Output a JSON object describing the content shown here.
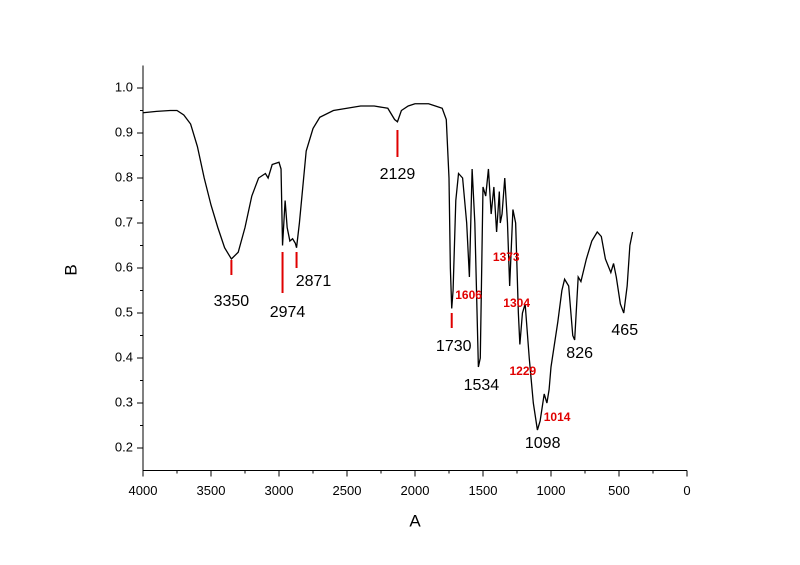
{
  "chart_data": {
    "type": "line",
    "x_label": "A",
    "y_label": "B",
    "xlim": [
      4000,
      0
    ],
    "ylim": [
      0.15,
      1.05
    ],
    "xticks": [
      4000,
      3500,
      3000,
      2500,
      2000,
      1500,
      1000,
      500,
      0
    ],
    "yticks": [
      0.2,
      0.3,
      0.4,
      0.5,
      0.6,
      0.7,
      0.8,
      0.9,
      {
        "value": 1,
        "label": "1.0"
      }
    ],
    "color": "#000000",
    "x": [
      4000,
      3900,
      3800,
      3750,
      3700,
      3650,
      3600,
      3550,
      3500,
      3450,
      3400,
      3350,
      3300,
      3250,
      3200,
      3150,
      3100,
      3080,
      3050,
      3000,
      2985,
      2974,
      2955,
      2940,
      2920,
      2900,
      2880,
      2871,
      2850,
      2800,
      2750,
      2700,
      2600,
      2500,
      2400,
      2300,
      2200,
      2150,
      2129,
      2100,
      2050,
      2000,
      1900,
      1850,
      1800,
      1770,
      1750,
      1740,
      1730,
      1720,
      1700,
      1680,
      1650,
      1620,
      1600,
      1580,
      1560,
      1534,
      1520,
      1500,
      1480,
      1460,
      1440,
      1420,
      1400,
      1380,
      1373,
      1360,
      1340,
      1320,
      1304,
      1280,
      1260,
      1240,
      1229,
      1210,
      1190,
      1160,
      1130,
      1100,
      1080,
      1050,
      1030,
      1014,
      1000,
      950,
      920,
      900,
      870,
      840,
      826,
      800,
      780,
      740,
      700,
      660,
      630,
      600,
      560,
      540,
      520,
      490,
      465,
      440,
      420,
      400
    ],
    "y": [
      0.945,
      0.948,
      0.95,
      0.95,
      0.94,
      0.92,
      0.87,
      0.8,
      0.74,
      0.69,
      0.645,
      0.62,
      0.635,
      0.69,
      0.76,
      0.8,
      0.81,
      0.8,
      0.83,
      0.835,
      0.82,
      0.65,
      0.75,
      0.69,
      0.66,
      0.665,
      0.655,
      0.645,
      0.7,
      0.86,
      0.91,
      0.935,
      0.95,
      0.955,
      0.96,
      0.96,
      0.955,
      0.93,
      0.925,
      0.95,
      0.96,
      0.965,
      0.965,
      0.96,
      0.955,
      0.93,
      0.8,
      0.6,
      0.51,
      0.55,
      0.75,
      0.81,
      0.8,
      0.7,
      0.58,
      0.82,
      0.7,
      0.38,
      0.4,
      0.78,
      0.76,
      0.82,
      0.72,
      0.78,
      0.68,
      0.77,
      0.7,
      0.72,
      0.8,
      0.7,
      0.56,
      0.73,
      0.7,
      0.5,
      0.43,
      0.5,
      0.52,
      0.4,
      0.3,
      0.24,
      0.26,
      0.32,
      0.3,
      0.33,
      0.38,
      0.48,
      0.55,
      0.575,
      0.56,
      0.45,
      0.44,
      0.58,
      0.57,
      0.62,
      0.66,
      0.68,
      0.67,
      0.62,
      0.59,
      0.61,
      0.58,
      0.52,
      0.5,
      0.56,
      0.65,
      0.68
    ],
    "annotations": [
      {
        "value": 3350,
        "color": "#000000",
        "marker_color": "#e00000"
      },
      {
        "value": 2974,
        "color": "#000000",
        "marker_color": "#e00000"
      },
      {
        "value": 2871,
        "color": "#000000",
        "marker_color": "#e00000"
      },
      {
        "value": 2129,
        "color": "#000000",
        "marker_color": "#e00000"
      },
      {
        "value": 1730,
        "color": "#000000",
        "marker_color": "#e00000"
      },
      {
        "value": 1534,
        "color": "#000000"
      },
      {
        "value": 826,
        "color": "#000000"
      },
      {
        "value": 465,
        "color": "#000000"
      },
      {
        "value": 1098,
        "color": "#000000"
      },
      {
        "value": 1606,
        "color": "#e00000"
      },
      {
        "value": 1373,
        "color": "#e00000"
      },
      {
        "value": 1304,
        "color": "#e00000"
      },
      {
        "value": 1229,
        "color": "#e00000"
      },
      {
        "value": 1014,
        "color": "#e00000"
      }
    ]
  }
}
